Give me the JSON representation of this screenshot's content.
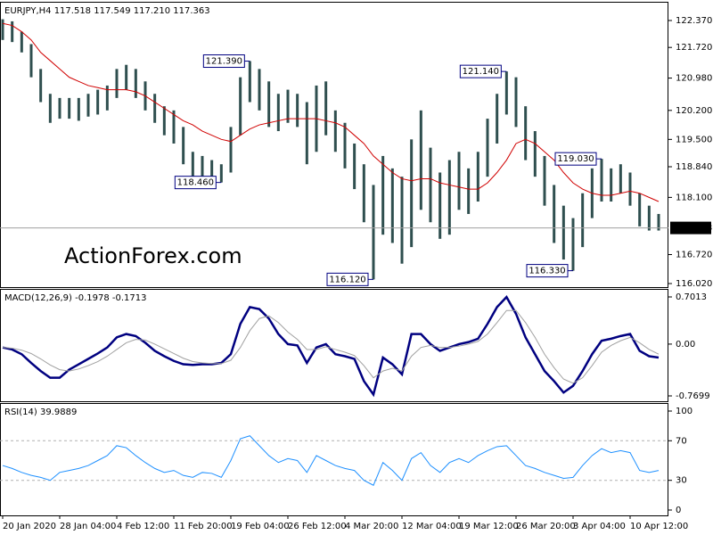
{
  "chart_data": [
    {
      "type": "hilo",
      "title": "EURJPY,H4  117.518 117.549 117.210 117.363",
      "watermark": "ActionForex.com",
      "color": "#2f4f4f",
      "high": [
        122.4,
        122.35,
        122.1,
        121.8,
        121.2,
        120.6,
        120.5,
        120.5,
        120.5,
        120.6,
        120.7,
        120.8,
        121.2,
        121.3,
        121.2,
        120.9,
        120.6,
        120.3,
        120.2,
        119.8,
        119.2,
        119.1,
        119.0,
        118.9,
        119.8,
        121.0,
        121.39,
        121.2,
        120.9,
        120.6,
        120.7,
        120.6,
        120.4,
        120.8,
        120.9,
        120.2,
        119.9,
        119.4,
        118.9,
        118.4,
        119.1,
        118.8,
        118.6,
        119.5,
        120.2,
        119.3,
        118.7,
        119.0,
        119.2,
        118.8,
        119.2,
        120.0,
        120.6,
        121.14,
        121.0,
        120.3,
        119.7,
        119.1,
        118.4,
        117.9,
        117.6,
        118.2,
        118.8,
        119.03,
        118.8,
        118.9,
        118.7,
        118.2,
        117.9,
        117.7
      ],
      "low": [
        121.9,
        121.85,
        121.6,
        121.0,
        120.4,
        119.9,
        120.0,
        120.0,
        119.95,
        120.05,
        120.1,
        120.2,
        120.5,
        120.7,
        120.5,
        120.2,
        119.9,
        119.6,
        119.4,
        118.9,
        118.5,
        118.6,
        118.5,
        118.46,
        118.7,
        119.6,
        120.4,
        120.2,
        119.8,
        119.7,
        119.9,
        119.8,
        118.9,
        119.2,
        119.6,
        119.2,
        118.8,
        118.3,
        117.5,
        116.12,
        117.2,
        117.0,
        116.5,
        116.9,
        117.8,
        117.5,
        117.1,
        117.2,
        117.8,
        117.7,
        118.0,
        118.6,
        119.4,
        120.1,
        119.8,
        119.0,
        118.6,
        117.9,
        117.0,
        116.6,
        116.33,
        116.9,
        117.6,
        118.0,
        118.0,
        118.2,
        117.9,
        117.4,
        117.3,
        117.3
      ],
      "ma_color": "#d00000",
      "ma_values": [
        122.3,
        122.25,
        122.1,
        121.9,
        121.6,
        121.4,
        121.2,
        121.0,
        120.9,
        120.8,
        120.75,
        120.7,
        120.7,
        120.7,
        120.65,
        120.55,
        120.4,
        120.25,
        120.1,
        119.95,
        119.85,
        119.7,
        119.6,
        119.5,
        119.45,
        119.6,
        119.75,
        119.85,
        119.9,
        119.95,
        120.0,
        120.0,
        120.0,
        120.0,
        119.95,
        119.9,
        119.8,
        119.6,
        119.4,
        119.1,
        118.9,
        118.7,
        118.55,
        118.5,
        118.55,
        118.55,
        118.45,
        118.4,
        118.35,
        118.3,
        118.3,
        118.45,
        118.7,
        119.0,
        119.4,
        119.5,
        119.4,
        119.2,
        119.0,
        118.7,
        118.45,
        118.3,
        118.2,
        118.15,
        118.15,
        118.2,
        118.25,
        118.2,
        118.1,
        118.0
      ],
      "ylim": [
        115.934,
        122.822
      ],
      "yticks": [
        {
          "value": 122.37,
          "label": "122.370"
        },
        {
          "value": 121.72,
          "label": "121.720"
        },
        {
          "value": 120.98,
          "label": "120.980"
        },
        {
          "value": 120.2,
          "label": "120.200"
        },
        {
          "value": 119.5,
          "label": "119.500"
        },
        {
          "value": 118.84,
          "label": "118.840"
        },
        {
          "value": 118.1,
          "label": "118.100"
        },
        {
          "value": 116.72,
          "label": "116.720"
        },
        {
          "value": 116.02,
          "label": "116.020"
        }
      ],
      "last": {
        "value": 117.363,
        "label": "117.363"
      },
      "annotations": [
        {
          "bar": 26,
          "value": 121.39,
          "label": "121.390"
        },
        {
          "bar": 23,
          "value": 118.46,
          "label": "118.460"
        },
        {
          "bar": 39,
          "value": 116.12,
          "label": "116.120"
        },
        {
          "bar": 53,
          "value": 121.14,
          "label": "121.140"
        },
        {
          "bar": 63,
          "value": 119.03,
          "label": "119.030"
        },
        {
          "bar": 60,
          "value": 116.33,
          "label": "116.330"
        }
      ]
    },
    {
      "type": "line",
      "title": "MACD(12,26,9) -0.1978 -0.1713",
      "series": [
        {
          "color": "#000080",
          "width": 2.5,
          "values": [
            -0.05,
            -0.08,
            -0.15,
            -0.28,
            -0.4,
            -0.5,
            -0.5,
            -0.38,
            -0.3,
            -0.22,
            -0.14,
            -0.05,
            0.1,
            0.15,
            0.12,
            0.02,
            -0.1,
            -0.18,
            -0.25,
            -0.3,
            -0.31,
            -0.3,
            -0.3,
            -0.28,
            -0.15,
            0.3,
            0.55,
            0.52,
            0.38,
            0.15,
            0.0,
            -0.02,
            -0.28,
            -0.05,
            0.0,
            -0.15,
            -0.18,
            -0.22,
            -0.55,
            -0.75,
            -0.2,
            -0.3,
            -0.45,
            0.15,
            0.15,
            0.0,
            -0.1,
            -0.05,
            0.0,
            0.03,
            0.08,
            0.3,
            0.55,
            0.7,
            0.45,
            0.1,
            -0.15,
            -0.4,
            -0.55,
            -0.72,
            -0.62,
            -0.4,
            -0.15,
            0.05,
            0.08,
            0.12,
            0.15,
            -0.1,
            -0.18,
            -0.2
          ]
        },
        {
          "color": "#a0a0a0",
          "width": 1,
          "values": [
            -0.05,
            -0.06,
            -0.09,
            -0.14,
            -0.22,
            -0.31,
            -0.38,
            -0.4,
            -0.37,
            -0.32,
            -0.26,
            -0.18,
            -0.08,
            0.02,
            0.07,
            0.06,
            0.0,
            -0.07,
            -0.14,
            -0.21,
            -0.26,
            -0.28,
            -0.29,
            -0.29,
            -0.24,
            -0.05,
            0.2,
            0.38,
            0.42,
            0.32,
            0.18,
            0.07,
            -0.08,
            -0.08,
            -0.04,
            -0.08,
            -0.12,
            -0.17,
            -0.32,
            -0.5,
            -0.4,
            -0.36,
            -0.4,
            -0.18,
            -0.05,
            -0.02,
            -0.05,
            -0.05,
            -0.03,
            0.0,
            0.04,
            0.15,
            0.32,
            0.5,
            0.5,
            0.32,
            0.1,
            -0.15,
            -0.35,
            -0.52,
            -0.58,
            -0.5,
            -0.32,
            -0.12,
            -0.02,
            0.05,
            0.1,
            0.02,
            -0.08,
            -0.15
          ]
        }
      ],
      "ylim": [
        -0.8494,
        0.8206
      ],
      "yticks": [
        0.7013,
        {
          "value": 0,
          "label": "0.00"
        },
        -0.7699
      ]
    },
    {
      "type": "line",
      "title": "RSI(14) 39.9889",
      "series": [
        {
          "color": "#1e90ff",
          "width": 1,
          "values": [
            45,
            42,
            38,
            35,
            33,
            30,
            38,
            40,
            42,
            45,
            50,
            55,
            65,
            63,
            55,
            48,
            42,
            38,
            40,
            35,
            33,
            38,
            37,
            33,
            50,
            72,
            75,
            65,
            55,
            48,
            52,
            50,
            38,
            55,
            50,
            45,
            42,
            40,
            30,
            25,
            48,
            40,
            30,
            52,
            58,
            45,
            38,
            48,
            52,
            48,
            55,
            60,
            64,
            65,
            55,
            45,
            42,
            38,
            35,
            32,
            33,
            45,
            55,
            62,
            58,
            60,
            58,
            40,
            38,
            40
          ]
        }
      ],
      "ylim": [
        -5.4,
        108.1
      ],
      "yticks": [
        100,
        70,
        30,
        0
      ],
      "levels": [
        70,
        30
      ],
      "categories": [
        "20 Jan 2020",
        null,
        null,
        null,
        null,
        null,
        "28 Jan 04:00",
        null,
        null,
        null,
        null,
        null,
        "4 Feb 12:00",
        null,
        null,
        null,
        null,
        null,
        "11 Feb 20:00",
        null,
        null,
        null,
        null,
        null,
        "19 Feb 04:00",
        null,
        null,
        null,
        null,
        null,
        "26 Feb 12:00",
        null,
        null,
        null,
        null,
        null,
        "4 Mar 20:00",
        null,
        null,
        null,
        null,
        null,
        "12 Mar 04:00",
        null,
        null,
        null,
        null,
        null,
        "19 Mar 12:00",
        null,
        null,
        null,
        null,
        null,
        "26 Mar 20:00",
        null,
        null,
        null,
        null,
        null,
        "3 Apr 04:00",
        null,
        null,
        null,
        null,
        null,
        "10 Apr 12:00",
        null,
        null,
        null
      ]
    }
  ]
}
